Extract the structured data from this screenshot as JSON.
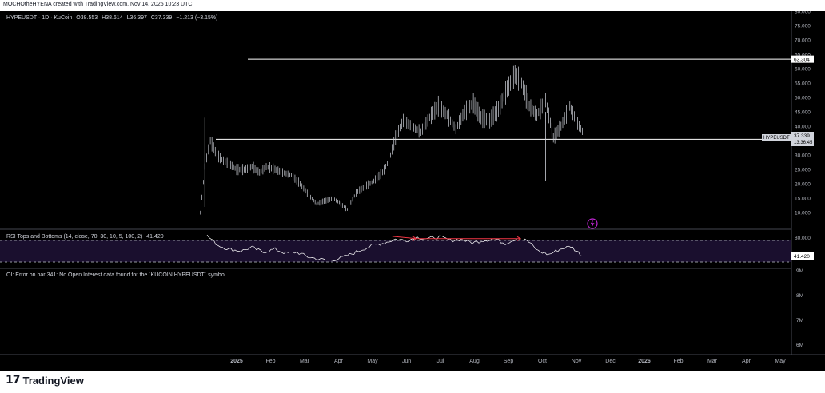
{
  "header": {
    "credit": "MOCHOtheHYENA created with TradingView.com, Nov 14, 2025 10:23 UTC"
  },
  "legend": {
    "symbol": "HYPEUSDT · 1D · KuCoin",
    "ohlc": [
      {
        "k": "O",
        "v": "38.553"
      },
      {
        "k": "H",
        "v": "38.614"
      },
      {
        "k": "L",
        "v": "36.397"
      },
      {
        "k": "C",
        "v": "37.339"
      }
    ],
    "change": "−1.213 (−3.15%)"
  },
  "chart_data": [
    {
      "type": "line",
      "title": "HYPEUSDT · 1D · KuCoin",
      "price_axis": [
        "80.000",
        "75.000",
        "70.000",
        "65.000",
        "60.000",
        "55.000",
        "50.000",
        "45.000",
        "40.000",
        "35.000",
        "30.000",
        "25.000",
        "20.000",
        "15.000",
        "10.000"
      ],
      "ylim": [
        7,
        80
      ],
      "x_labels": [
        "2025",
        "Feb",
        "Mar",
        "Apr",
        "May",
        "Jun",
        "Jul",
        "Aug",
        "Sep",
        "Oct",
        "Nov",
        "Dec",
        "2026",
        "Feb",
        "Mar",
        "Apr",
        "May"
      ],
      "series": [
        {
          "x": [
            "2024-11-29",
            "2024-12-03",
            "2024-12-08",
            "2024-12-14",
            "2024-12-20",
            "2024-12-25",
            "2025-01-01",
            "2025-01-08",
            "2025-01-15",
            "2025-01-22",
            "2025-01-28",
            "2025-02-05",
            "2025-02-12",
            "2025-02-20",
            "2025-02-28",
            "2025-03-08",
            "2025-03-15",
            "2025-03-22",
            "2025-03-30",
            "2025-04-06",
            "2025-04-12",
            "2025-04-20",
            "2025-04-28",
            "2025-05-06",
            "2025-05-14",
            "2025-05-20",
            "2025-05-26",
            "2025-06-02",
            "2025-06-10",
            "2025-06-18",
            "2025-06-26",
            "2025-07-04",
            "2025-07-12",
            "2025-07-20",
            "2025-07-28",
            "2025-08-05",
            "2025-08-12",
            "2025-08-20",
            "2025-08-28",
            "2025-09-05",
            "2025-09-12",
            "2025-09-18",
            "2025-09-25",
            "2025-10-02",
            "2025-10-10",
            "2025-10-17",
            "2025-10-24",
            "2025-11-01",
            "2025-11-08",
            "2025-11-14"
          ],
          "values": [
            10,
            26,
            35,
            30,
            28,
            27,
            25,
            25,
            26,
            24,
            26,
            25,
            24,
            23,
            20,
            16,
            13,
            14,
            15,
            13,
            11,
            17,
            19,
            21,
            24,
            28,
            36,
            42,
            40,
            38,
            43,
            47,
            44,
            39,
            45,
            48,
            43,
            42,
            46,
            53,
            58,
            55,
            47,
            44,
            49,
            36,
            40,
            47,
            41,
            37.339
          ]
        }
      ],
      "hlines": [
        {
          "value": 63.304,
          "label": "63.304"
        },
        {
          "value": 35.473,
          "label": "35.473"
        }
      ],
      "last_price": {
        "value": 37.339,
        "symbol": "HYPEUSDT",
        "label": "37.339",
        "countdown": "13:36:45"
      }
    },
    {
      "type": "line",
      "title": "RSI Tops and Bottoms (14, close, 70, 30, 10, 5, 100, 2)",
      "current_label": "41.420",
      "axis": [
        "80.000"
      ],
      "ylim": [
        25,
        85
      ],
      "bands": [
        70,
        30
      ],
      "series": [
        {
          "x": [
            "2024-12-05",
            "2024-12-15",
            "2024-12-25",
            "2025-01-05",
            "2025-01-15",
            "2025-01-25",
            "2025-02-05",
            "2025-02-15",
            "2025-02-25",
            "2025-03-07",
            "2025-03-17",
            "2025-03-27",
            "2025-04-06",
            "2025-04-16",
            "2025-04-26",
            "2025-05-06",
            "2025-05-16",
            "2025-05-26",
            "2025-06-05",
            "2025-06-15",
            "2025-06-25",
            "2025-07-05",
            "2025-07-15",
            "2025-07-25",
            "2025-08-04",
            "2025-08-14",
            "2025-08-24",
            "2025-09-03",
            "2025-09-13",
            "2025-09-23",
            "2025-10-03",
            "2025-10-13",
            "2025-10-23",
            "2025-11-02",
            "2025-11-14"
          ],
          "values": [
            78,
            62,
            55,
            52,
            58,
            50,
            55,
            48,
            50,
            42,
            38,
            36,
            40,
            47,
            55,
            62,
            66,
            72,
            70,
            75,
            73,
            76,
            70,
            72,
            66,
            70,
            73,
            65,
            73,
            70,
            52,
            46,
            55,
            60,
            41.42
          ]
        }
      ],
      "divergences": [
        {
          "x1": "2025-05-23",
          "y1": 77,
          "x2": "2025-06-14",
          "y2": 73
        },
        {
          "x1": "2025-06-14",
          "y1": 73,
          "x2": "2025-09-17",
          "y2": 73
        }
      ]
    },
    {
      "type": "line",
      "title": "OI: Error on bar 341: No Open Interest data found for the `KUCOIN:HYPEUSDT` symbol.",
      "axis": [
        "9M",
        "8M",
        "7M",
        "6M"
      ],
      "series": []
    }
  ],
  "footer": {
    "brand": "TradingView",
    "logo_mark": "17"
  },
  "colors": {
    "background": "#000000",
    "candle": "#d1d4dc",
    "hline": "#ffffff",
    "rsi_band_fill": "#1a0f2e",
    "rsi_band_border": "#9598a1",
    "divergence": "#f23645",
    "flash_icon": "#c026d3"
  }
}
